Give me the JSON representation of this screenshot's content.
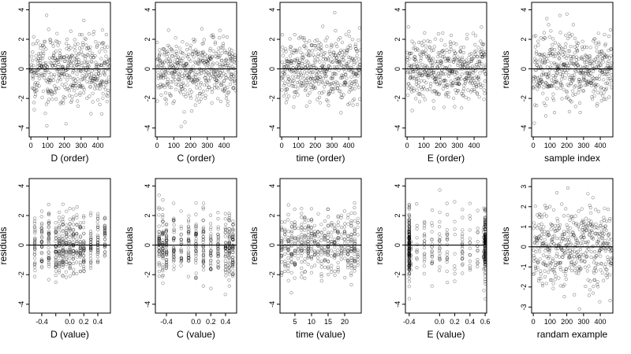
{
  "chart_data": [
    {
      "type": "scatter",
      "xlabel": "D (order)",
      "ylabel": "residuals",
      "xlim": [
        -10,
        475
      ],
      "ylim": [
        -4.6,
        4.5
      ],
      "xticks": [
        0,
        100,
        200,
        300,
        400
      ],
      "yticks": [
        -4,
        -2,
        0,
        2,
        4
      ],
      "x_kind": "order",
      "n": 480,
      "zero_line": 0
    },
    {
      "type": "scatter",
      "xlabel": "C (order)",
      "ylabel": "residuals",
      "xlim": [
        -10,
        475
      ],
      "ylim": [
        -4.6,
        4.5
      ],
      "xticks": [
        0,
        100,
        200,
        300,
        400
      ],
      "yticks": [
        -4,
        -2,
        0,
        2,
        4
      ],
      "x_kind": "order",
      "n": 480,
      "zero_line": 0
    },
    {
      "type": "scatter",
      "xlabel": "time (order)",
      "ylabel": "residuals",
      "xlim": [
        -10,
        475
      ],
      "ylim": [
        -4.6,
        4.5
      ],
      "xticks": [
        0,
        100,
        200,
        300,
        400
      ],
      "yticks": [
        -4,
        -2,
        0,
        2,
        4
      ],
      "x_kind": "order",
      "n": 480,
      "zero_line": 0
    },
    {
      "type": "scatter",
      "xlabel": "E (order)",
      "ylabel": "residuals",
      "xlim": [
        -10,
        475
      ],
      "ylim": [
        -4.6,
        4.5
      ],
      "xticks": [
        0,
        100,
        200,
        300,
        400
      ],
      "yticks": [
        -4,
        -2,
        0,
        2,
        4
      ],
      "x_kind": "order",
      "n": 480,
      "zero_line": 0
    },
    {
      "type": "scatter",
      "xlabel": "sample index",
      "ylabel": "residuals",
      "xlim": [
        -10,
        475
      ],
      "ylim": [
        -4.6,
        4.5
      ],
      "xticks": [
        0,
        100,
        200,
        300,
        400
      ],
      "yticks": [
        -4,
        -2,
        0,
        2,
        4
      ],
      "x_kind": "order",
      "n": 480,
      "zero_line": 0
    },
    {
      "type": "scatter",
      "xlabel": "D (value)",
      "ylabel": "residuals",
      "xlim": [
        -0.58,
        0.58
      ],
      "ylim": [
        -4.6,
        4.5
      ],
      "xticks": [
        -0.4,
        -0.2,
        0.0,
        0.2,
        0.4
      ],
      "xtick_labels": [
        "-0.4",
        "",
        "0.0",
        "0.2",
        "0.4"
      ],
      "yticks": [
        -4,
        -2,
        0,
        2,
        4
      ],
      "x_kind": "discrete",
      "x_levels": [
        -0.5,
        -0.4,
        -0.3,
        -0.2,
        -0.15,
        -0.1,
        -0.05,
        0.0,
        0.05,
        0.1,
        0.15,
        0.2,
        0.3,
        0.4,
        0.5
      ],
      "n": 480,
      "zero_line": 0
    },
    {
      "type": "scatter",
      "xlabel": "C (value)",
      "ylabel": "residuals",
      "xlim": [
        -0.55,
        0.55
      ],
      "ylim": [
        -4.6,
        4.5
      ],
      "xticks": [
        -0.4,
        0.0,
        0.2,
        0.4
      ],
      "xtick_labels": [
        "-0.4",
        "0.0",
        "0.2",
        "0.4"
      ],
      "yticks": [
        -4,
        -2,
        0,
        2,
        4
      ],
      "x_kind": "discrete",
      "x_levels": [
        -0.5,
        -0.45,
        -0.4,
        -0.3,
        -0.2,
        -0.1,
        0.0,
        0.1,
        0.2,
        0.3,
        0.4,
        0.45,
        0.5
      ],
      "n": 480,
      "zero_line": 0
    },
    {
      "type": "scatter",
      "xlabel": "time (value)",
      "ylabel": "residuals",
      "xlim": [
        0.5,
        25
      ],
      "ylim": [
        -4.6,
        4.5
      ],
      "xticks": [
        5,
        10,
        15,
        20
      ],
      "xtick_labels": [
        "5",
        "10",
        "15",
        "20"
      ],
      "yticks": [
        -4,
        -2,
        0,
        2,
        4
      ],
      "x_kind": "discrete",
      "x_levels": [
        1,
        2,
        3,
        4,
        5,
        6,
        7,
        8,
        9,
        10,
        11,
        12,
        13,
        14,
        15,
        16,
        17,
        18,
        19,
        20,
        21,
        22,
        23,
        24
      ],
      "n": 480,
      "zero_line": 0
    },
    {
      "type": "scatter",
      "xlabel": "E (value)",
      "ylabel": "residuals",
      "xlim": [
        -0.45,
        0.62
      ],
      "ylim": [
        -4.6,
        4.5
      ],
      "xticks": [
        -0.4,
        0.0,
        0.2,
        0.4,
        0.6
      ],
      "xtick_labels": [
        "-0.4",
        "0.0",
        "0.2",
        "0.4",
        "0.6"
      ],
      "yticks": [
        -4,
        -2,
        0,
        2,
        4
      ],
      "x_kind": "clustered",
      "x_levels": [
        -0.4,
        -0.38,
        -0.3,
        -0.2,
        -0.1,
        0.0,
        0.1,
        0.2,
        0.3,
        0.4,
        0.5,
        0.58,
        0.6
      ],
      "n": 480,
      "zero_line": 0
    },
    {
      "type": "scatter",
      "xlabel": "randam example",
      "ylabel": "residuals",
      "xlim": [
        -10,
        475
      ],
      "ylim": [
        -3.3,
        3.4
      ],
      "xticks": [
        0,
        100,
        200,
        300,
        400
      ],
      "yticks": [
        -3,
        -2,
        -1,
        0,
        1,
        2,
        3
      ],
      "x_kind": "order",
      "n": 480,
      "zero_line": 0
    }
  ]
}
